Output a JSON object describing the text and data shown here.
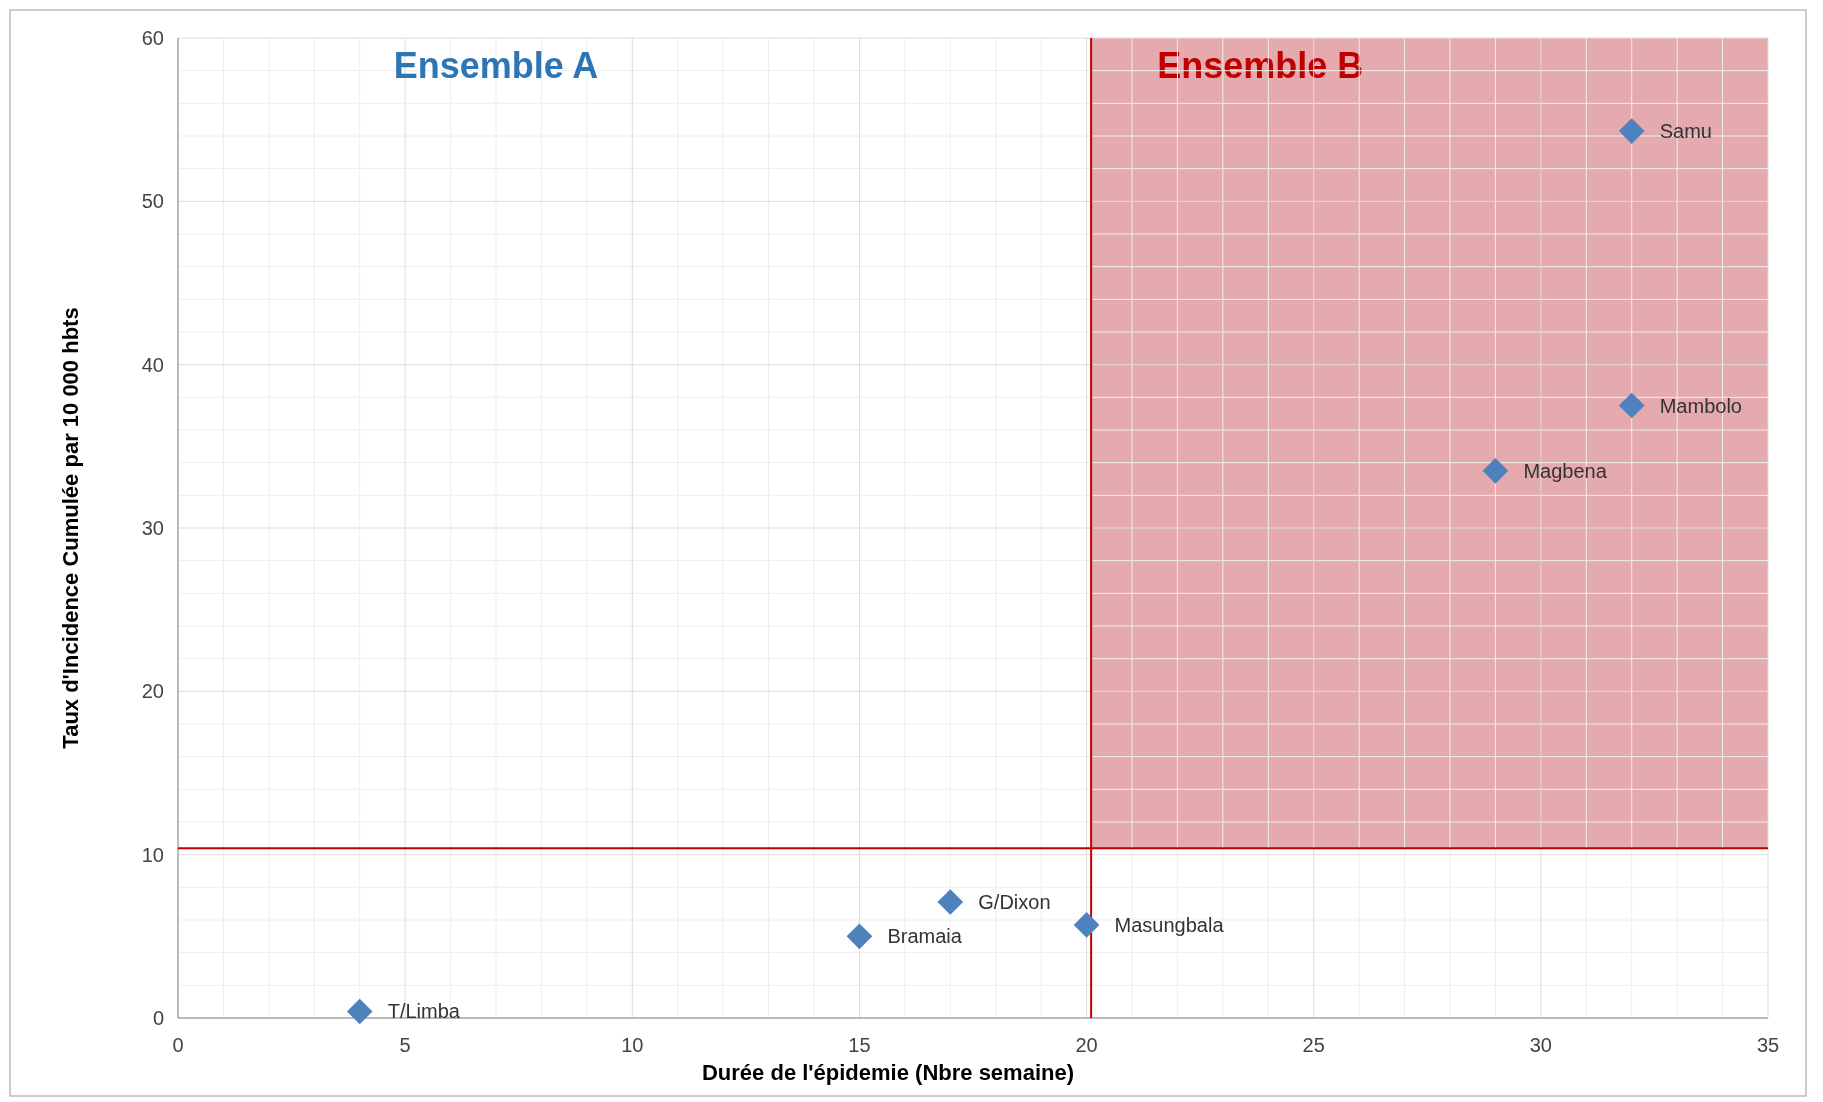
{
  "chart_data": {
    "type": "scatter",
    "xlabel": "Durée de l'épidemie (Nbre semaine)",
    "ylabel": "Taux d'Incidence Cumulée par 10 000 hbts",
    "series": [
      {
        "color": "#4f81bd",
        "x": [
          4,
          15,
          17,
          20,
          29,
          32,
          32
        ],
        "values": [
          0.4,
          5,
          7.1,
          5.7,
          33.5,
          37.5,
          54.3
        ]
      }
    ],
    "marker": "diamond",
    "xlim": [
      0,
      35
    ],
    "ylim": [
      0,
      60
    ],
    "xticks": [
      0,
      5,
      10,
      15,
      20,
      25,
      30,
      35
    ],
    "yticks": [
      0,
      10,
      20,
      30,
      40,
      50,
      60
    ],
    "grid": true,
    "ref_lines": [
      {
        "axis": "y",
        "value": 10.4,
        "color": "#c00000"
      },
      {
        "axis": "x",
        "value": 20.1,
        "color": "#c00000"
      }
    ],
    "bands": [
      {
        "axis": "x",
        "from": 20.1,
        "to": 35,
        "label": "Ensemble B",
        "color": "#d9868a"
      }
    ],
    "annotations": [
      "Ensemble A",
      {
        "text": "T/Limba",
        "x": 4,
        "y": 0.4
      },
      {
        "text": "Bramaia",
        "x": 15,
        "y": 5
      },
      {
        "text": "G/Dixon",
        "x": 17,
        "y": 7.1
      },
      {
        "text": "Masungbala",
        "x": 20,
        "y": 5.7
      },
      {
        "text": "Magbena",
        "x": 29,
        "y": 33.5
      },
      {
        "text": "Mambolo",
        "x": 32,
        "y": 37.5
      },
      {
        "text": "Samu",
        "x": 32,
        "y": 54.3
      }
    ]
  }
}
